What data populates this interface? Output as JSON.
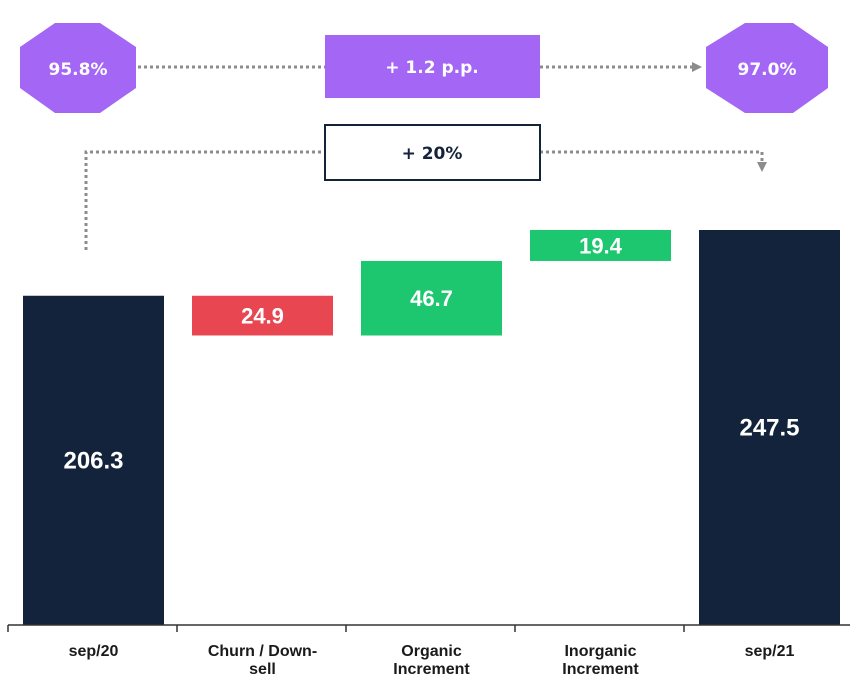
{
  "colors": {
    "dark": "#13233b",
    "negative": "#e84752",
    "positive": "#1cc76f",
    "purple": "#a366f5",
    "connector": "#8c8c8c",
    "axis": "#333333"
  },
  "annotations": {
    "start_rate": "95.8%",
    "end_rate": "97.0%",
    "rate_change": "+ 1.2 p.p.",
    "growth": "+ 20%"
  },
  "chart_data": {
    "type": "bar",
    "subtype": "waterfall",
    "categories": [
      "sep/20",
      "Churn / Down-sell",
      "Organic Increment",
      "Inorganic Increment",
      "sep/21"
    ],
    "steps": [
      {
        "label": "206.3",
        "value": 206.3,
        "kind": "total"
      },
      {
        "label": "24.9",
        "value": -24.9,
        "kind": "decrease"
      },
      {
        "label": "46.7",
        "value": 46.7,
        "kind": "increase"
      },
      {
        "label": "19.4",
        "value": 19.4,
        "kind": "increase"
      },
      {
        "label": "247.5",
        "value": 247.5,
        "kind": "total"
      }
    ],
    "title": "",
    "xlabel": "",
    "ylabel": "",
    "ylim": [
      0,
      260
    ],
    "grid": false,
    "legend": "none"
  }
}
